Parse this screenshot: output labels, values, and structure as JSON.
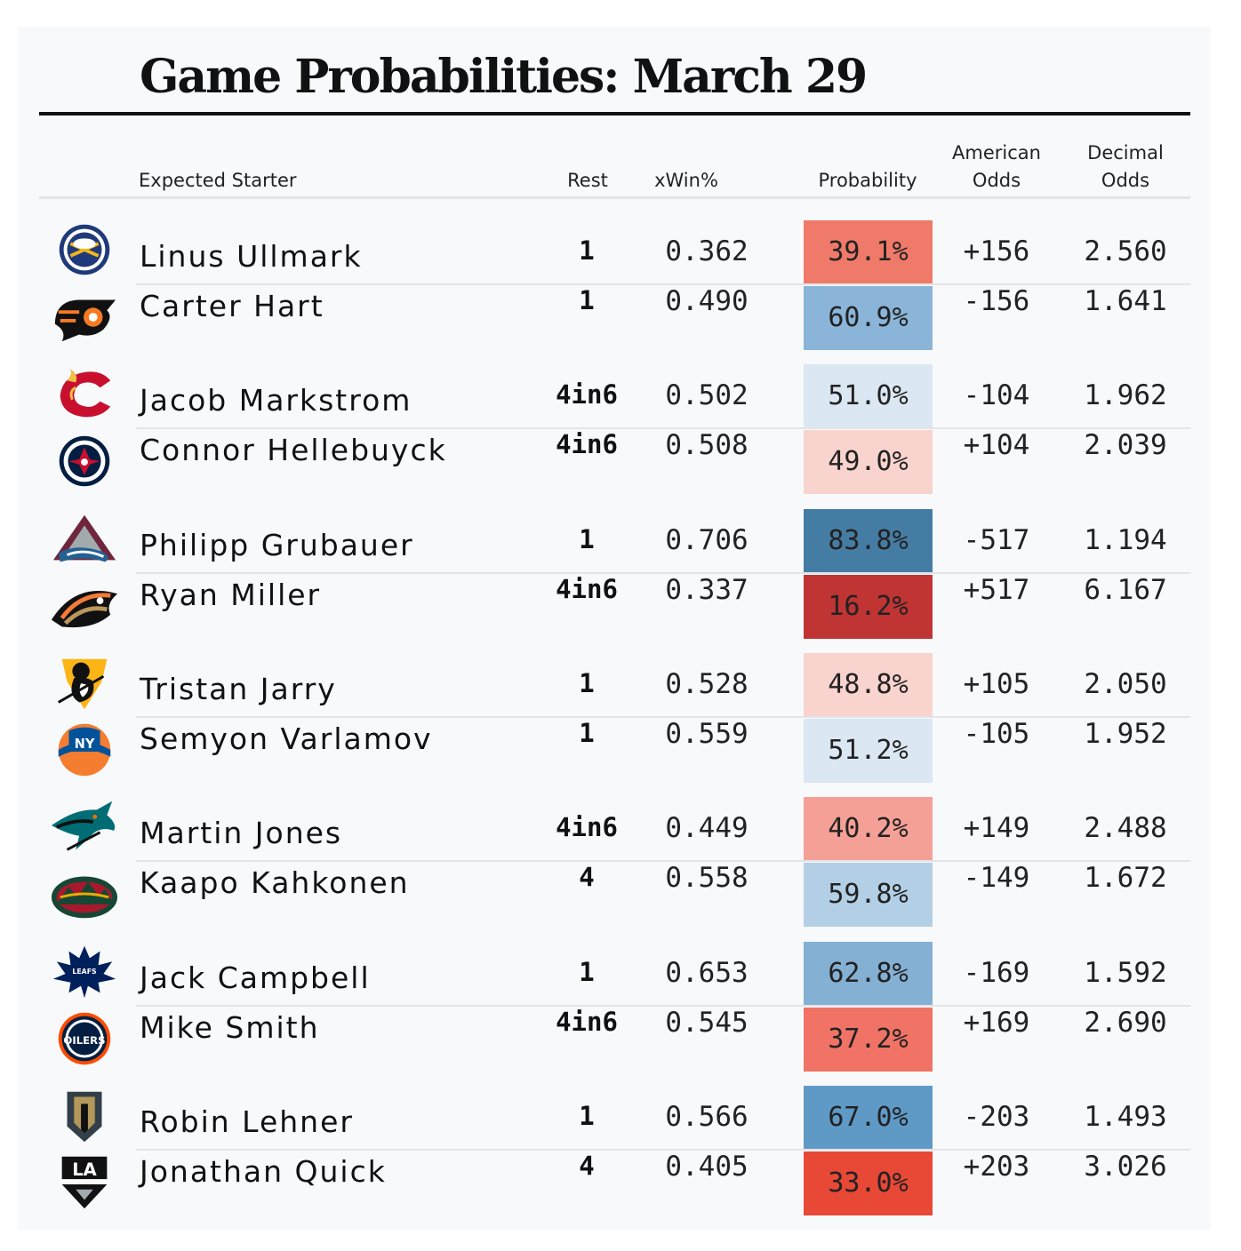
{
  "title": "Game Probabilities: March 29",
  "headers": {
    "starter": "Expected Starter",
    "rest": "Rest",
    "xwin": "xWin%",
    "probability": "Probability",
    "american_1": "American",
    "american_2": "Odds",
    "decimal_1": "Decimal",
    "decimal_2": "Odds"
  },
  "chart_data": {
    "type": "table",
    "columns": [
      "Expected Starter",
      "Rest",
      "xWin%",
      "Probability",
      "American Odds",
      "Decimal Odds"
    ],
    "rows": [
      {
        "team": "Buffalo Sabres",
        "starter": "Linus Ullmark",
        "rest": "1",
        "xwin": "0.362",
        "probability": "39.1%",
        "american": "+156",
        "decimal": "2.560",
        "color": "#f07a69"
      },
      {
        "team": "Philadelphia Flyers",
        "starter": "Carter Hart",
        "rest": "1",
        "xwin": "0.490",
        "probability": "60.9%",
        "american": "-156",
        "decimal": "1.641",
        "color": "#8ab5d8"
      },
      {
        "team": "Calgary Flames",
        "starter": "Jacob Markstrom",
        "rest": "4in6",
        "xwin": "0.502",
        "probability": "51.0%",
        "american": "-104",
        "decimal": "1.962",
        "color": "#dbe7f2"
      },
      {
        "team": "Winnipeg Jets",
        "starter": "Connor Hellebuyck",
        "rest": "4in6",
        "xwin": "0.508",
        "probability": "49.0%",
        "american": "+104",
        "decimal": "2.039",
        "color": "#f9d3cd"
      },
      {
        "team": "Colorado Avalanche",
        "starter": "Philipp Grubauer",
        "rest": "1",
        "xwin": "0.706",
        "probability": "83.8%",
        "american": "-517",
        "decimal": "1.194",
        "color": "#457ca3"
      },
      {
        "team": "Anaheim Ducks",
        "starter": "Ryan Miller",
        "rest": "4in6",
        "xwin": "0.337",
        "probability": "16.2%",
        "american": "+517",
        "decimal": "6.167",
        "color": "#c03434"
      },
      {
        "team": "Pittsburgh Penguins",
        "starter": "Tristan Jarry",
        "rest": "1",
        "xwin": "0.528",
        "probability": "48.8%",
        "american": "+105",
        "decimal": "2.050",
        "color": "#f9d3cd"
      },
      {
        "team": "New York Islanders",
        "starter": "Semyon Varlamov",
        "rest": "1",
        "xwin": "0.559",
        "probability": "51.2%",
        "american": "-105",
        "decimal": "1.952",
        "color": "#dbe7f2"
      },
      {
        "team": "San Jose Sharks",
        "starter": "Martin Jones",
        "rest": "4in6",
        "xwin": "0.449",
        "probability": "40.2%",
        "american": "+149",
        "decimal": "2.488",
        "color": "#f5a096"
      },
      {
        "team": "Minnesota Wild",
        "starter": "Kaapo Kahkonen",
        "rest": "4",
        "xwin": "0.558",
        "probability": "59.8%",
        "american": "-149",
        "decimal": "1.672",
        "color": "#b3cfe5"
      },
      {
        "team": "Toronto Maple Leafs",
        "starter": "Jack Campbell",
        "rest": "1",
        "xwin": "0.653",
        "probability": "62.8%",
        "american": "-169",
        "decimal": "1.592",
        "color": "#84b0d4"
      },
      {
        "team": "Edmonton Oilers",
        "starter": "Mike Smith",
        "rest": "4in6",
        "xwin": "0.545",
        "probability": "37.2%",
        "american": "+169",
        "decimal": "2.690",
        "color": "#f07366"
      },
      {
        "team": "Vegas Golden Knights",
        "starter": "Robin Lehner",
        "rest": "1",
        "xwin": "0.566",
        "probability": "67.0%",
        "american": "-203",
        "decimal": "1.493",
        "color": "#5f9ac7"
      },
      {
        "team": "Los Angeles Kings",
        "starter": "Jonathan Quick",
        "rest": "4",
        "xwin": "0.405",
        "probability": "33.0%",
        "american": "+203",
        "decimal": "3.026",
        "color": "#e84836"
      }
    ]
  }
}
